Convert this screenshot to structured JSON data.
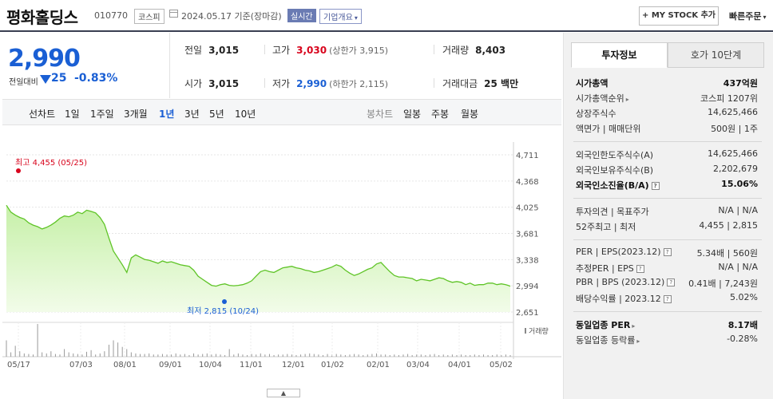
{
  "header": {
    "company": "평화홀딩스",
    "code": "010770",
    "market": "코스피",
    "as_of": "2024.05.17  기준(장마감)",
    "realtime": "실시간",
    "company_info": "기업개요",
    "mystock": "+ MY STOCK 추가",
    "quick_order": "빠른주문"
  },
  "price": {
    "current": "2,990",
    "vs_prev_label": "전일대비",
    "change": "25",
    "rate": "-0.83%",
    "direction": "down"
  },
  "stats": {
    "prev_close_label": "전일",
    "prev_close": "3,015",
    "high_label": "고가",
    "high": "3,030",
    "upper_limit": "(상한가 3,915)",
    "volume_label": "거래량",
    "volume": "8,403",
    "open_label": "시가",
    "open": "3,015",
    "low_label": "저가",
    "low": "2,990",
    "lower_limit": "(하한가 2,115)",
    "amount_label": "거래대금",
    "amount": "25 백만"
  },
  "toolbar": {
    "line_chart": "선차트",
    "periods": [
      "1일",
      "1주일",
      "3개월",
      "1년",
      "3년",
      "5년",
      "10년"
    ],
    "active_period": "1년",
    "candle_chart": "봉차트",
    "candle_periods": [
      "일봉",
      "주봉",
      "월봉"
    ]
  },
  "chart_data": {
    "type": "area",
    "title": "",
    "y_ticks": [
      "4,711",
      "4,368",
      "4,025",
      "3,681",
      "3,338",
      "2,994",
      "2,651"
    ],
    "ylim": [
      2651,
      4711
    ],
    "x_ticks": [
      "05/17",
      "07/03",
      "08/01",
      "09/01",
      "10/04",
      "11/01",
      "12/01",
      "01/02",
      "02/01",
      "03/04",
      "04/01",
      "05/02"
    ],
    "high_label": "최고 4,455 (05/25)",
    "low_label": "최저 2,815 (10/24)",
    "volume_label": "거래량",
    "series": [
      {
        "values": [
          4050,
          3960,
          3920,
          3890,
          3870,
          3820,
          3790,
          3770,
          3740,
          3760,
          3790,
          3830,
          3880,
          3910,
          3900,
          3920,
          3960,
          3940,
          3985,
          3970,
          3950,
          3890,
          3800,
          3620,
          3450,
          3360,
          3270,
          3170,
          3360,
          3400,
          3370,
          3340,
          3330,
          3310,
          3290,
          3320,
          3300,
          3310,
          3290,
          3270,
          3260,
          3250,
          3200,
          3120,
          3080,
          3040,
          3000,
          2990,
          3010,
          3020,
          3000,
          2995,
          3000,
          3010,
          3030,
          3060,
          3120,
          3180,
          3200,
          3180,
          3170,
          3200,
          3230,
          3240,
          3250,
          3230,
          3220,
          3200,
          3190,
          3170,
          3180,
          3200,
          3220,
          3240,
          3270,
          3250,
          3200,
          3160,
          3130,
          3150,
          3180,
          3210,
          3230,
          3280,
          3300,
          3240,
          3180,
          3130,
          3110,
          3110,
          3100,
          3090,
          3060,
          3080,
          3070,
          3060,
          3080,
          3100,
          3090,
          3060,
          3040,
          3050,
          3040,
          3010,
          3030,
          3000,
          3010,
          3010,
          3030,
          3030,
          3010,
          3020,
          3010,
          2990
        ]
      }
    ],
    "volume_bars": [
      30,
      8,
      20,
      10,
      6,
      5,
      4,
      60,
      8,
      6,
      10,
      5,
      4,
      14,
      8,
      6,
      5,
      4,
      9,
      12,
      4,
      6,
      10,
      22,
      30,
      26,
      18,
      14,
      8,
      6,
      5,
      5,
      6,
      4,
      4,
      5,
      4,
      4,
      6,
      4,
      5,
      3,
      6,
      4,
      5,
      6,
      4,
      5,
      4,
      3,
      14,
      4,
      6,
      4,
      3,
      5,
      4,
      6,
      4,
      5,
      3,
      4,
      4,
      5,
      4,
      3,
      4,
      5,
      6,
      5,
      4,
      3,
      5,
      4,
      5,
      4,
      3,
      4,
      5,
      4,
      3,
      4,
      5,
      6,
      4,
      4,
      3,
      4,
      3,
      4,
      5,
      3,
      4,
      4,
      3,
      4,
      5,
      3,
      4,
      3,
      4,
      3,
      4,
      3,
      3,
      4,
      3,
      4,
      3,
      3,
      4,
      3,
      4,
      3
    ]
  },
  "info": {
    "tab_invest": "투자정보",
    "tab_hoga": "호가 10단계",
    "market_cap_label": "시가총액",
    "market_cap": "437억원",
    "cap_rank_label": "시가총액순위",
    "cap_rank": "코스피 1207위",
    "shares_label": "상장주식수",
    "shares": "14,625,466",
    "par_label": "액면가 | 매매단위",
    "par": "500원 | 1주",
    "foreign_limit_label": "외국인한도주식수(A)",
    "foreign_limit": "14,625,466",
    "foreign_hold_label": "외국인보유주식수(B)",
    "foreign_hold": "2,202,679",
    "foreign_rate_label": "외국인소진율(B/A)",
    "foreign_rate": "15.06%",
    "opinion_label": "투자의견 | 목표주가",
    "opinion": "N/A | N/A",
    "range52_label": "52주최고 | 최저",
    "range52": "4,455 | 2,815",
    "per_eps_label": "PER | EPS(2023.12)",
    "per_eps": "5.34배 | 560원",
    "est_label": "추정PER | EPS",
    "est": "N/A | N/A",
    "pbr_bps_label": "PBR | BPS (2023.12)",
    "pbr_bps": "0.41배 | 7,243원",
    "div_label": "배당수익률 | 2023.12",
    "div": "5.02%",
    "ind_per_label": "동일업종 PER",
    "ind_per": "8.17배",
    "ind_rate_label": "동일업종 등락률",
    "ind_rate": "-0.28%"
  }
}
